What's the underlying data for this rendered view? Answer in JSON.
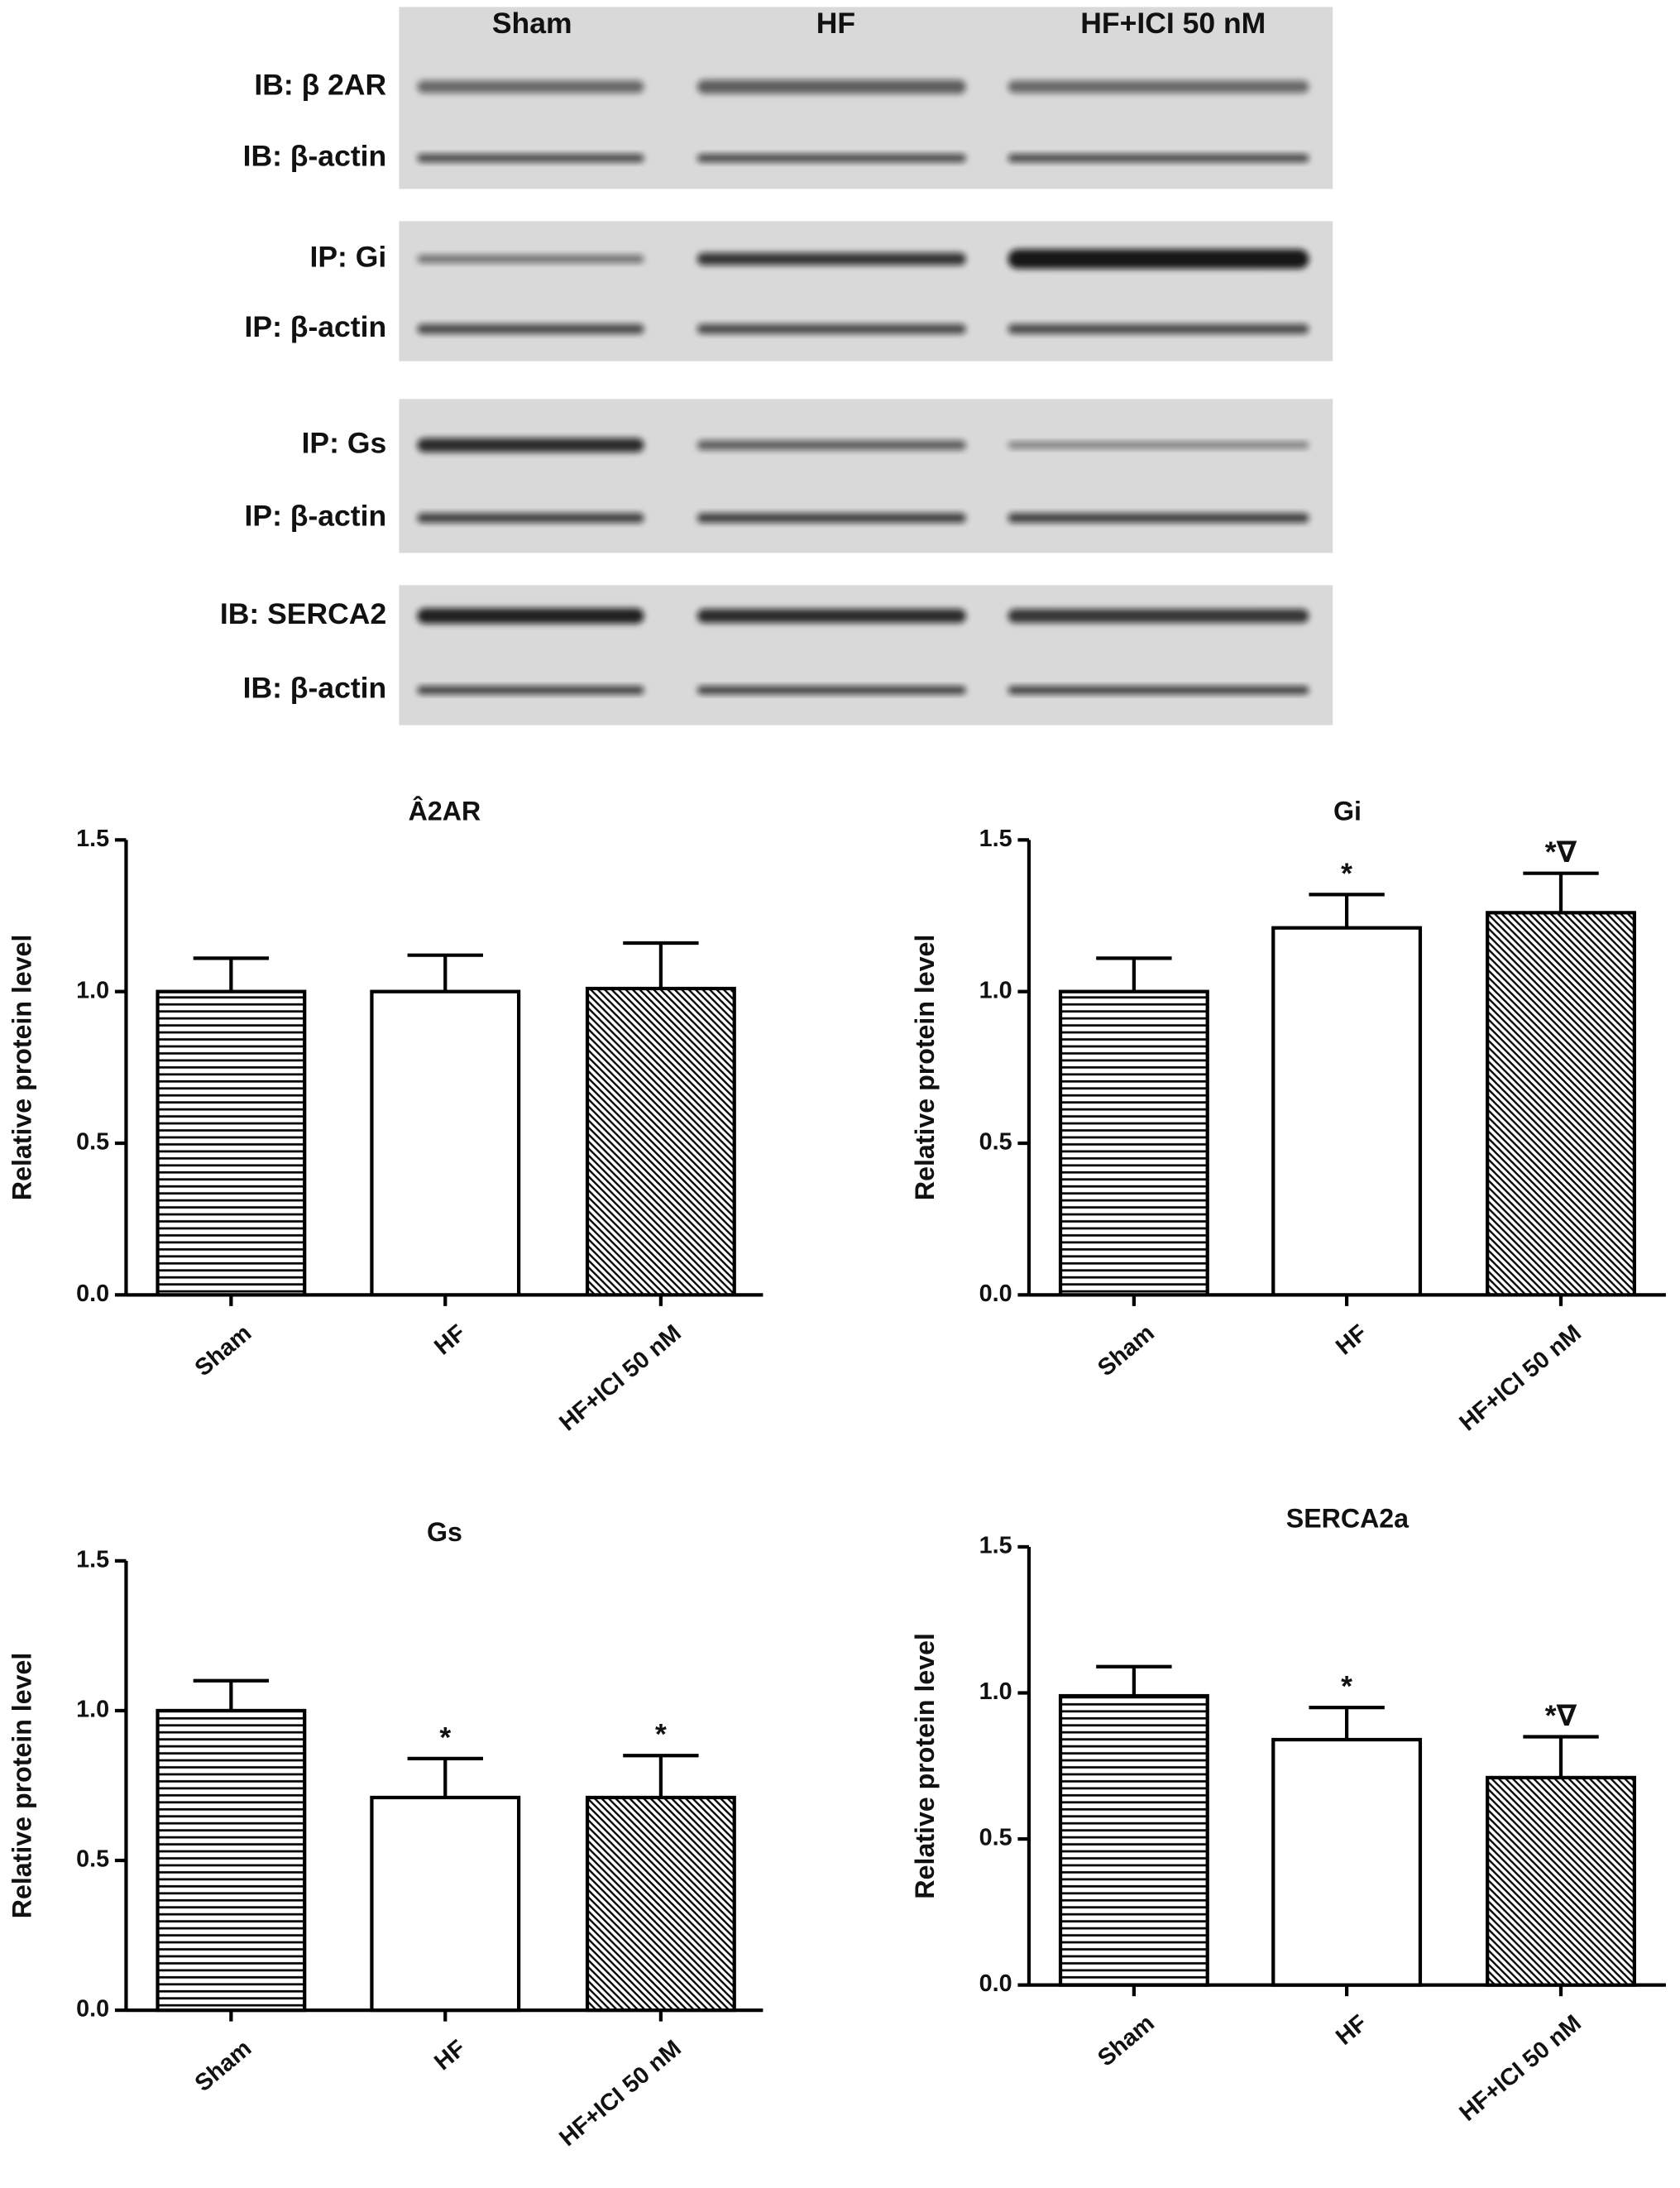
{
  "blot": {
    "lanes": [
      "Sham",
      "HF",
      "HF+ICI 50 nM"
    ],
    "rows": [
      "IB: β 2AR",
      "IB: β-actin",
      "IP: Gi",
      "IP: β-actin",
      "IP: Gs",
      "IP: β-actin",
      "IB: SERCA2",
      "IB: β-actin"
    ]
  },
  "chart_data": [
    {
      "type": "bar",
      "title": "Â2AR",
      "ylabel": "Relative protein level",
      "categories": [
        "Sham",
        "HF",
        "HF+ICI 50 nM"
      ],
      "values": [
        1.0,
        1.0,
        1.01
      ],
      "errors": [
        0.11,
        0.12,
        0.15
      ],
      "annotations": [
        null,
        null,
        null
      ],
      "patterns": [
        "horizontal",
        "none",
        "diagonal"
      ],
      "color": "#000000",
      "ylim": [
        0,
        1.5
      ],
      "yticks": [
        {
          "value": 0,
          "label": "0.0"
        },
        0.5,
        {
          "value": 1,
          "label": "1.0"
        },
        1.5
      ]
    },
    {
      "type": "bar",
      "title": "Gi",
      "ylabel": "Relative protein level",
      "categories": [
        "Sham",
        "HF",
        "HF+ICI 50 nM"
      ],
      "values": [
        1.0,
        1.21,
        1.26
      ],
      "errors": [
        0.11,
        0.11,
        0.13
      ],
      "annotations": [
        null,
        "*",
        "*∇"
      ],
      "patterns": [
        "horizontal",
        "none",
        "diagonal"
      ],
      "color": "#000000",
      "ylim": [
        0,
        1.5
      ],
      "yticks": [
        {
          "value": 0,
          "label": "0.0"
        },
        0.5,
        {
          "value": 1,
          "label": "1.0"
        },
        1.5
      ]
    },
    {
      "type": "bar",
      "title": "Gs",
      "ylabel": "Relative protein level",
      "categories": [
        "Sham",
        "HF",
        "HF+ICI 50 nM"
      ],
      "values": [
        1.0,
        0.71,
        0.71
      ],
      "errors": [
        0.1,
        0.13,
        0.14
      ],
      "annotations": [
        null,
        "*",
        "*"
      ],
      "patterns": [
        "horizontal",
        "none",
        "diagonal"
      ],
      "color": "#000000",
      "ylim": [
        0,
        1.5
      ],
      "yticks": [
        {
          "value": 0,
          "label": "0.0"
        },
        0.5,
        {
          "value": 1,
          "label": "1.0"
        },
        1.5
      ]
    },
    {
      "type": "bar",
      "title": "SERCA2a",
      "ylabel": "Relative protein level",
      "categories": [
        "Sham",
        "HF",
        "HF+ICI 50 nM"
      ],
      "values": [
        0.99,
        0.84,
        0.71
      ],
      "errors": [
        0.1,
        0.11,
        0.14
      ],
      "annotations": [
        null,
        "*",
        "*∇"
      ],
      "patterns": [
        "horizontal",
        "none",
        "diagonal"
      ],
      "color": "#000000",
      "ylim": [
        0,
        1.5
      ],
      "yticks": [
        {
          "value": 0,
          "label": "0.0"
        },
        0.5,
        {
          "value": 1,
          "label": "1.0"
        },
        1.5
      ]
    }
  ]
}
